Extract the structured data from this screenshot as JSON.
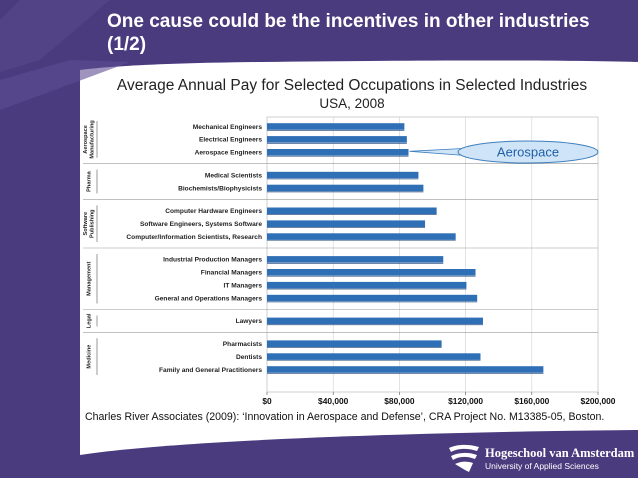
{
  "slide": {
    "title": "One cause could be the incentives in other industries (1/2)",
    "source": "Charles River Associates  (2009): ‘Innovation in Aerospace and Defense’, CRA Project No. M13385-05, Boston.",
    "brand_color": "#4a3a7e",
    "logo": {
      "name": "Hogeschool van Amsterdam",
      "subtitle": "University of Applied Sciences",
      "icon": "hva-wave-logo-icon"
    }
  },
  "chart_data": {
    "type": "bar",
    "orientation": "horizontal",
    "title": "Average Annual Pay for Selected Occupations in Selected Industries",
    "subtitle": "USA, 2008",
    "xlim": [
      0,
      200000
    ],
    "x_ticks": [
      0,
      40000,
      80000,
      120000,
      160000,
      200000
    ],
    "x_tick_labels": [
      "$0",
      "$40,000",
      "$80,000",
      "$120,000",
      "$160,000",
      "$200,000"
    ],
    "grid": true,
    "bar_color": "#2e6fb6",
    "groups": [
      {
        "name": "Aerospace Manufacturing",
        "categories": [
          "Mechanical Engineers",
          "Electrical Engineers",
          "Aerospace Engineers"
        ],
        "values": [
          83000,
          84500,
          85500
        ]
      },
      {
        "name": "Pharma",
        "categories": [
          "Medical Scientists",
          "Biochemists/Biophysicists"
        ],
        "values": [
          91500,
          94500
        ]
      },
      {
        "name": "Software Publishing",
        "categories": [
          "Computer Hardware Engineers",
          "Software Engineers, Systems Software",
          "Computer/Information Scientists, Research"
        ],
        "values": [
          102500,
          95500,
          114000
        ]
      },
      {
        "name": "Management",
        "categories": [
          "Industrial Production Managers",
          "Financial Managers",
          "IT Managers",
          "General and Operations Managers"
        ],
        "values": [
          106500,
          126000,
          120500,
          127000
        ]
      },
      {
        "name": "Legal",
        "categories": [
          "Lawyers"
        ],
        "values": [
          130500
        ]
      },
      {
        "name": "Medicine",
        "categories": [
          "Pharmacists",
          "Dentists",
          "Family and General Practitioners"
        ],
        "values": [
          105500,
          129000,
          167000
        ]
      }
    ],
    "annotation": {
      "text": "Aerospace",
      "target": "Aerospace Engineers"
    }
  }
}
